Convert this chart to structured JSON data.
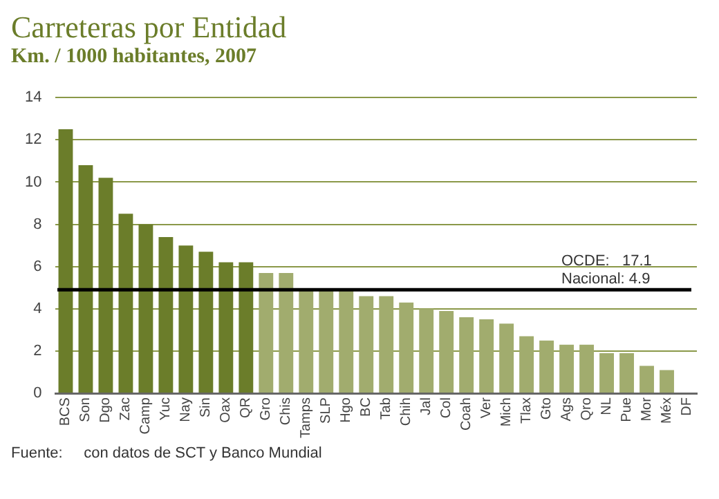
{
  "chart_data": {
    "type": "bar",
    "title": "Carreteras por Entidad",
    "subtitle": "Km. / 1000 habitantes, 2007",
    "categories": [
      "BCS",
      "Son",
      "Dgo",
      "Zac",
      "Camp",
      "Yuc",
      "Nay",
      "Sin",
      "Oax",
      "QR",
      "Gro",
      "Chis",
      "Tamps",
      "SLP",
      "Hgo",
      "BC",
      "Tab",
      "Chih",
      "Jal",
      "Col",
      "Coah",
      "Ver",
      "Mich",
      "Tlax",
      "Gto",
      "Ags",
      "Qro",
      "NL",
      "Pue",
      "Mor",
      "Méx",
      "DF"
    ],
    "values": [
      12.5,
      10.8,
      10.2,
      8.5,
      8.0,
      7.4,
      7.0,
      6.7,
      6.2,
      6.2,
      5.7,
      5.7,
      4.9,
      4.9,
      4.9,
      4.6,
      4.6,
      4.3,
      4.0,
      3.9,
      3.6,
      3.5,
      3.3,
      2.7,
      2.5,
      2.3,
      2.3,
      1.9,
      1.9,
      1.3,
      1.1,
      0
    ],
    "colors": [
      "#6b7d2a",
      "#6b7d2a",
      "#6b7d2a",
      "#6b7d2a",
      "#6b7d2a",
      "#6b7d2a",
      "#6b7d2a",
      "#6b7d2a",
      "#6b7d2a",
      "#6b7d2a",
      "#a1ac6e",
      "#a1ac6e",
      "#a1ac6e",
      "#a1ac6e",
      "#a1ac6e",
      "#a1ac6e",
      "#a1ac6e",
      "#a1ac6e",
      "#a1ac6e",
      "#a1ac6e",
      "#a1ac6e",
      "#a1ac6e",
      "#a1ac6e",
      "#a1ac6e",
      "#a1ac6e",
      "#a1ac6e",
      "#a1ac6e",
      "#a1ac6e",
      "#a1ac6e",
      "#a1ac6e",
      "#a1ac6e",
      "#a1ac6e"
    ],
    "ylim": [
      0,
      14
    ],
    "yticks": [
      0,
      2,
      4,
      6,
      8,
      10,
      12,
      14
    ],
    "grid": "y",
    "ref_lines": [
      {
        "axis": "y",
        "value": 4.9,
        "label": "Nacional: 4.9",
        "color": "#000000"
      }
    ],
    "annotations": [
      "OCDE:   17.1",
      "Fuente:     con datos de SCT y Banco Mundial"
    ]
  }
}
